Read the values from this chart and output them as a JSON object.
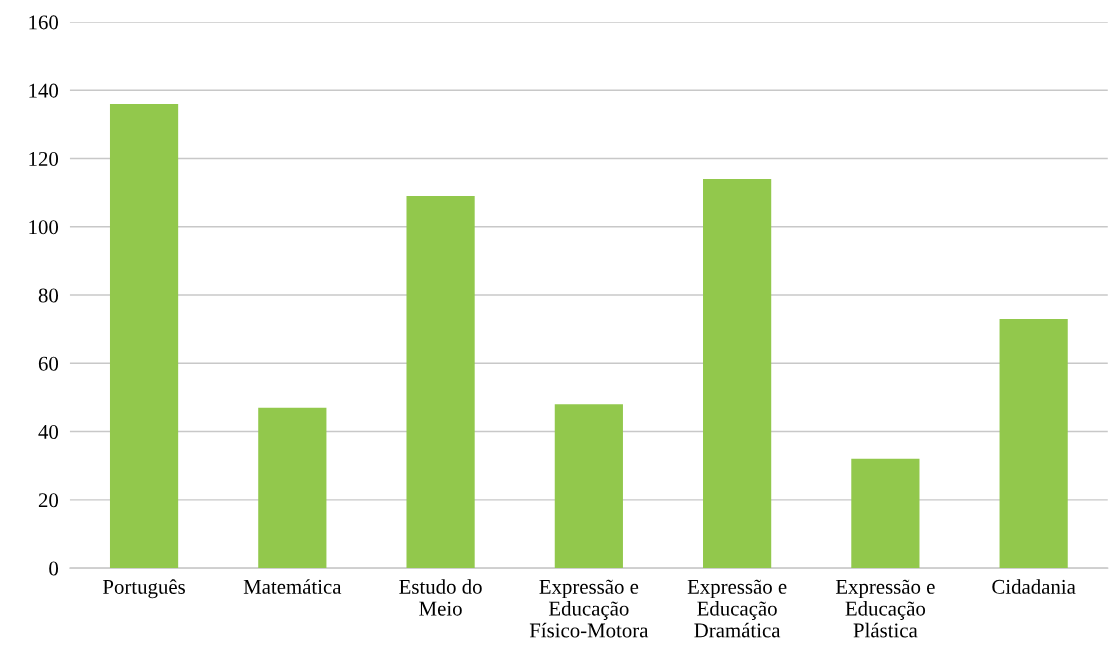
{
  "chart_data": {
    "type": "bar",
    "categories": [
      "Português",
      "Matemática",
      "Estudo do\nMeio",
      "Expressão e\nEducação\nFísico-Motora",
      "Expressão e\nEducação\nDramática",
      "Expressão e\nEducação\nPlástica",
      "Cidadania"
    ],
    "values": [
      136,
      47,
      109,
      48,
      114,
      32,
      73
    ],
    "color": "#92c84c",
    "ylim": [
      0,
      160
    ],
    "yticks": [
      0,
      20,
      40,
      60,
      80,
      100,
      120,
      140,
      160
    ],
    "grid": "y",
    "legend": false
  }
}
